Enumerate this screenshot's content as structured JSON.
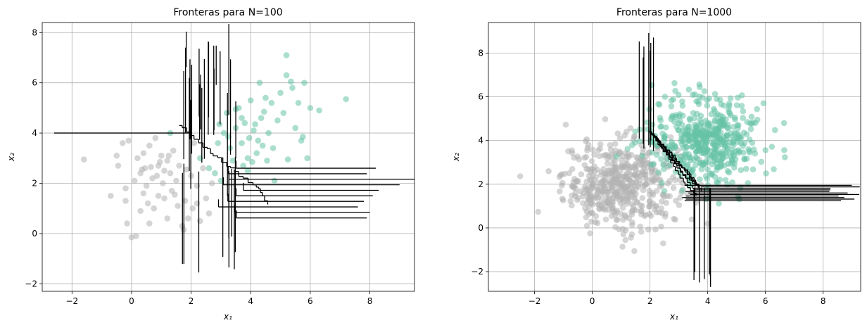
{
  "chart_data": [
    {
      "type": "scatter",
      "title": "Fronteras para N=100",
      "xlabel": "x₁",
      "ylabel": "x₂",
      "xlim": [
        -3.0,
        9.5
      ],
      "ylim": [
        -2.3,
        8.4
      ],
      "xticks": [
        -2,
        0,
        2,
        4,
        6,
        8
      ],
      "yticks": [
        -2,
        0,
        2,
        4,
        6,
        8
      ],
      "grid": true,
      "series": [
        {
          "color": "#b3b3b3",
          "points": [
            [
              -1.6,
              2.95
            ],
            [
              -0.7,
              1.5
            ],
            [
              -0.5,
              3.1
            ],
            [
              -0.45,
              2.7
            ],
            [
              -0.3,
              3.6
            ],
            [
              -0.2,
              1.8
            ],
            [
              -0.2,
              1.3
            ],
            [
              -0.15,
              0.4
            ],
            [
              -0.1,
              3.7
            ],
            [
              0.0,
              -0.15
            ],
            [
              0.1,
              2.1
            ],
            [
              0.15,
              -0.1
            ],
            [
              0.2,
              3.0
            ],
            [
              0.3,
              2.4
            ],
            [
              0.3,
              0.9
            ],
            [
              0.4,
              3.2
            ],
            [
              0.4,
              1.6
            ],
            [
              0.45,
              2.6
            ],
            [
              0.5,
              1.9
            ],
            [
              0.55,
              1.2
            ],
            [
              0.6,
              3.5
            ],
            [
              0.6,
              0.4
            ],
            [
              0.7,
              2.2
            ],
            [
              0.75,
              1.0
            ],
            [
              0.8,
              3.8
            ],
            [
              0.9,
              2.7
            ],
            [
              0.9,
              1.5
            ],
            [
              1.0,
              3.1
            ],
            [
              1.05,
              2.0
            ],
            [
              1.1,
              1.4
            ],
            [
              1.2,
              2.9
            ],
            [
              1.2,
              0.6
            ],
            [
              1.3,
              2.4
            ],
            [
              1.35,
              1.7
            ],
            [
              1.4,
              3.3
            ],
            [
              1.5,
              2.1
            ],
            [
              1.55,
              1.1
            ],
            [
              1.6,
              2.7
            ],
            [
              1.7,
              0.3
            ],
            [
              1.75,
              0.15
            ],
            [
              1.8,
              1.3
            ],
            [
              1.9,
              0.6
            ],
            [
              2.0,
              2.3
            ],
            [
              2.05,
              1.0
            ],
            [
              2.1,
              3.6
            ],
            [
              2.2,
              1.9
            ],
            [
              2.3,
              0.5
            ],
            [
              2.4,
              2.6
            ],
            [
              2.5,
              1.4
            ],
            [
              2.6,
              0.8
            ],
            [
              0.85,
              2.3
            ],
            [
              0.95,
              2.85
            ],
            [
              1.1,
              2.5
            ],
            [
              1.25,
              3.1
            ],
            [
              0.35,
              2.55
            ],
            [
              0.65,
              2.65
            ],
            [
              1.45,
              1.55
            ],
            [
              1.85,
              2.55
            ],
            [
              2.2,
              1.2
            ],
            [
              2.7,
              2.0
            ]
          ]
        },
        {
          "color": "#66c2a5",
          "points": [
            [
              1.3,
              4.0
            ],
            [
              2.3,
              3.0
            ],
            [
              2.6,
              2.6
            ],
            [
              2.8,
              2.4
            ],
            [
              2.9,
              3.6
            ],
            [
              3.0,
              2.1
            ],
            [
              3.1,
              4.0
            ],
            [
              3.2,
              4.8
            ],
            [
              3.3,
              3.4
            ],
            [
              3.4,
              2.9
            ],
            [
              3.5,
              4.2
            ],
            [
              3.6,
              5.0
            ],
            [
              3.7,
              3.6
            ],
            [
              3.75,
              2.7
            ],
            [
              3.8,
              4.4
            ],
            [
              3.9,
              2.5
            ],
            [
              3.95,
              3.8
            ],
            [
              4.0,
              5.3
            ],
            [
              4.1,
              4.1
            ],
            [
              4.2,
              3.2
            ],
            [
              4.3,
              6.0
            ],
            [
              4.35,
              4.6
            ],
            [
              4.4,
              3.5
            ],
            [
              4.5,
              5.4
            ],
            [
              4.55,
              2.9
            ],
            [
              4.6,
              4.0
            ],
            [
              4.7,
              5.2
            ],
            [
              4.8,
              2.1
            ],
            [
              4.9,
              4.5
            ],
            [
              5.0,
              5.6
            ],
            [
              5.1,
              4.8
            ],
            [
              5.2,
              7.1
            ],
            [
              5.2,
              6.3
            ],
            [
              5.25,
              2.95
            ],
            [
              5.4,
              5.8
            ],
            [
              5.5,
              4.2
            ],
            [
              5.6,
              5.2
            ],
            [
              5.7,
              3.7
            ],
            [
              5.8,
              6.0
            ],
            [
              5.9,
              3.0
            ],
            [
              6.0,
              5.0
            ],
            [
              6.3,
              4.9
            ],
            [
              7.2,
              5.35
            ],
            [
              3.5,
              4.95
            ],
            [
              3.9,
              3.0
            ],
            [
              4.15,
              4.35
            ],
            [
              4.45,
              4.85
            ],
            [
              4.75,
              3.4
            ],
            [
              5.35,
              6.05
            ],
            [
              2.95,
              4.35
            ],
            [
              3.25,
              3.85
            ],
            [
              3.7,
              4.6
            ],
            [
              4.05,
              2.85
            ],
            [
              4.25,
              3.7
            ],
            [
              5.75,
              3.85
            ]
          ]
        }
      ]
    },
    {
      "type": "scatter",
      "title": "Fronteras para N=1000",
      "xlabel": "x₁",
      "ylabel": "x₂",
      "xlim": [
        -3.6,
        9.3
      ],
      "ylim": [
        -2.9,
        9.4
      ],
      "xticks": [
        -2,
        0,
        2,
        4,
        6,
        8
      ],
      "yticks": [
        -2,
        0,
        2,
        4,
        6,
        8
      ],
      "grid": true,
      "series": [
        {
          "color": "#b3b3b3",
          "cluster": {
            "center": [
              1.0,
              2.0
            ],
            "spread": [
              1.0,
              1.0
            ],
            "count": 500
          }
        },
        {
          "color": "#66c2a5",
          "cluster": {
            "center": [
              4.0,
              4.0
            ],
            "spread": [
              1.0,
              1.0
            ],
            "count": 500
          }
        }
      ]
    }
  ]
}
